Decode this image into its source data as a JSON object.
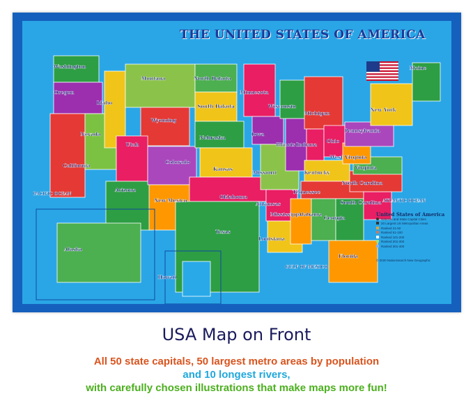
{
  "map": {
    "title": "THE UNITED STATES OF AMERICA",
    "states": [
      "Washington",
      "Oregon",
      "California",
      "Nevada",
      "Idaho",
      "Montana",
      "Wyoming",
      "Utah",
      "Arizona",
      "Colorado",
      "New Mexico",
      "North Dakota",
      "South Dakota",
      "Nebraska",
      "Kansas",
      "Oklahoma",
      "Texas",
      "Minnesota",
      "Iowa",
      "Missouri",
      "Arkansas",
      "Louisiana",
      "Wisconsin",
      "Illinois",
      "Michigan",
      "Indiana",
      "Ohio",
      "Kentucky",
      "Tennessee",
      "Mississippi",
      "Alabama",
      "Georgia",
      "Florida",
      "South Carolina",
      "North Carolina",
      "Virginia",
      "West Virginia",
      "Pennsylvania",
      "New York",
      "Maine",
      "Alaska",
      "Hawaii"
    ],
    "water_labels": [
      "PACIFIC OCEAN",
      "ATLANTIC OCEAN",
      "GULF OF MEXICO"
    ],
    "cities": [
      "Seattle",
      "Helena",
      "Boise",
      "Salt Lake City",
      "Carson City",
      "Sacramento",
      "Denver",
      "Santa Fe",
      "Phoenix",
      "Bismarck",
      "Pierre",
      "Lincoln",
      "Topeka",
      "Oklahoma City",
      "Austin",
      "Saint Paul",
      "Des Moines",
      "Jefferson City",
      "Little Rock",
      "Baton Rouge",
      "Madison",
      "Springfield",
      "Lansing",
      "Indianapolis",
      "Columbus",
      "Frankfort",
      "Nashville",
      "Jackson",
      "Montgomery",
      "Atlanta",
      "Tallahassee",
      "Columbia",
      "Raleigh",
      "Richmond",
      "Charleston",
      "Harrisburg",
      "Albany",
      "Augusta"
    ],
    "colors": {
      "border": "#1560bd",
      "ocean": "#2aa6e6"
    }
  },
  "legend": {
    "title": "United States of America",
    "items": [
      "National and State Capital Cities",
      "20 Largest US Metropolitan Areas",
      "Ranked 21-50",
      "Ranked 51-100",
      "Ranked 101-200",
      "Ranked 201-300",
      "Ranked 301-400"
    ],
    "copyright": "© 2020 NationSearch New Geographic"
  },
  "caption": {
    "title": "USA Map on Front",
    "line1": "All 50 state capitals, 50 largest metro areas by population",
    "line2": "and 10 longest rivers,",
    "line3": "with carefully chosen illustrations that make maps more fun!",
    "colors": {
      "line1": "#d9541e",
      "line2": "#1fa8dc",
      "line3": "#4caf1e"
    }
  }
}
